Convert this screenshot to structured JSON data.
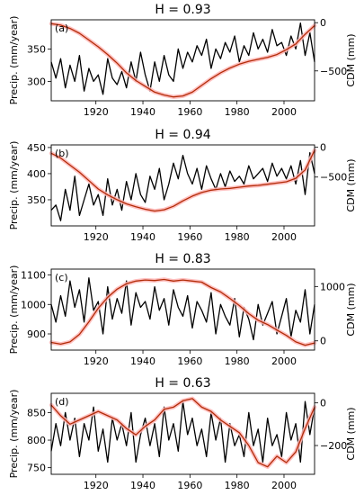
{
  "chart_data": [
    {
      "type": "line",
      "panel_label": "(a)",
      "title": "H = 0.93",
      "xlabel": "",
      "xlim": [
        1901,
        2013
      ],
      "xticks": [
        1920,
        1940,
        1960,
        1980,
        2000
      ],
      "ylabel_left": "Precip. (mm/year)",
      "ylim_left": [
        270,
        395
      ],
      "yticks_left": [
        300,
        350
      ],
      "ylabel_right": "CDM (mm)",
      "ylim_right": [
        -810,
        30
      ],
      "yticks_right": [
        -500,
        0
      ],
      "series": [
        {
          "axis": "left",
          "color": "#000000",
          "x": [
            1901,
            1903,
            1905,
            1907,
            1909,
            1911,
            1913,
            1915,
            1917,
            1919,
            1921,
            1923,
            1925,
            1927,
            1929,
            1931,
            1933,
            1935,
            1937,
            1939,
            1941,
            1943,
            1945,
            1947,
            1949,
            1951,
            1953,
            1955,
            1957,
            1959,
            1961,
            1963,
            1965,
            1967,
            1969,
            1971,
            1973,
            1975,
            1977,
            1979,
            1981,
            1983,
            1985,
            1987,
            1989,
            1991,
            1993,
            1995,
            1997,
            1999,
            2001,
            2003,
            2005,
            2007,
            2009,
            2011,
            2013
          ],
          "y": [
            330,
            305,
            335,
            290,
            325,
            300,
            340,
            285,
            320,
            300,
            310,
            280,
            335,
            305,
            295,
            315,
            290,
            330,
            300,
            345,
            310,
            285,
            330,
            300,
            340,
            310,
            300,
            350,
            320,
            345,
            330,
            355,
            340,
            365,
            320,
            350,
            335,
            360,
            345,
            370,
            330,
            355,
            340,
            375,
            350,
            365,
            345,
            380,
            355,
            360,
            340,
            370,
            350,
            390,
            340,
            375,
            330
          ]
        },
        {
          "axis": "right",
          "color": "#b22c08",
          "x": [
            1901,
            1905,
            1909,
            1913,
            1917,
            1921,
            1925,
            1929,
            1933,
            1937,
            1941,
            1945,
            1949,
            1953,
            1957,
            1961,
            1965,
            1969,
            1973,
            1977,
            1981,
            1985,
            1989,
            1993,
            1997,
            2001,
            2005,
            2009,
            2013
          ],
          "y": [
            -10,
            -25,
            -60,
            -110,
            -180,
            -250,
            -330,
            -420,
            -520,
            -600,
            -660,
            -720,
            -750,
            -770,
            -760,
            -720,
            -650,
            -580,
            -520,
            -470,
            -430,
            -400,
            -380,
            -360,
            -330,
            -280,
            -220,
            -120,
            -30
          ]
        }
      ]
    },
    {
      "type": "line",
      "panel_label": "(b)",
      "title": "H = 0.94",
      "xlabel": "",
      "xlim": [
        1901,
        2013
      ],
      "xticks": [
        1920,
        1940,
        1960,
        1980,
        2000
      ],
      "ylabel_left": "Precip. (mm/year)",
      "ylim_left": [
        300,
        455
      ],
      "yticks_left": [
        350,
        400,
        450
      ],
      "ylabel_right": "CDM (mm)",
      "ylim_right": [
        -1320,
        40
      ],
      "yticks_right": [
        -500,
        0
      ],
      "series": [
        {
          "axis": "left",
          "color": "#000000",
          "x": [
            1901,
            1903,
            1905,
            1907,
            1909,
            1911,
            1913,
            1915,
            1917,
            1919,
            1921,
            1923,
            1925,
            1927,
            1929,
            1931,
            1933,
            1935,
            1937,
            1939,
            1941,
            1943,
            1945,
            1947,
            1949,
            1951,
            1953,
            1955,
            1957,
            1959,
            1961,
            1963,
            1965,
            1967,
            1969,
            1971,
            1973,
            1975,
            1977,
            1979,
            1981,
            1983,
            1985,
            1987,
            1989,
            1991,
            1993,
            1995,
            1997,
            1999,
            2001,
            2003,
            2005,
            2007,
            2009,
            2011,
            2013
          ],
          "y": [
            330,
            340,
            310,
            370,
            330,
            395,
            320,
            350,
            380,
            340,
            360,
            320,
            390,
            340,
            370,
            330,
            385,
            350,
            400,
            360,
            345,
            395,
            370,
            410,
            350,
            380,
            420,
            390,
            435,
            400,
            380,
            410,
            370,
            415,
            390,
            370,
            400,
            375,
            405,
            385,
            395,
            380,
            415,
            390,
            400,
            410,
            385,
            420,
            395,
            410,
            390,
            415,
            380,
            425,
            360,
            440,
            400
          ]
        },
        {
          "axis": "right",
          "color": "#b22c08",
          "x": [
            1901,
            1905,
            1909,
            1913,
            1917,
            1921,
            1925,
            1929,
            1933,
            1937,
            1941,
            1945,
            1949,
            1953,
            1957,
            1961,
            1965,
            1969,
            1973,
            1977,
            1981,
            1985,
            1989,
            1993,
            1997,
            2001,
            2005,
            2009,
            2013
          ],
          "y": [
            -100,
            -180,
            -300,
            -420,
            -560,
            -700,
            -800,
            -880,
            -950,
            -1000,
            -1040,
            -1070,
            -1050,
            -990,
            -900,
            -820,
            -760,
            -720,
            -700,
            -690,
            -670,
            -650,
            -640,
            -620,
            -600,
            -580,
            -520,
            -380,
            -50
          ]
        }
      ]
    },
    {
      "type": "line",
      "panel_label": "(c)",
      "title": "H = 0.83",
      "xlabel": "",
      "xlim": [
        1901,
        2013
      ],
      "xticks": [
        1920,
        1940,
        1960,
        1980,
        2000
      ],
      "ylabel_left": "Precip. (mm/year)",
      "ylim_left": [
        845,
        1120
      ],
      "yticks_left": [
        900,
        1000,
        1100
      ],
      "ylabel_right": "CDM (mm)",
      "ylim_right": [
        -170,
        1320
      ],
      "yticks_right": [
        0,
        1000
      ],
      "series": [
        {
          "axis": "left",
          "color": "#000000",
          "x": [
            1901,
            1903,
            1905,
            1907,
            1909,
            1911,
            1913,
            1915,
            1917,
            1919,
            1921,
            1923,
            1925,
            1927,
            1929,
            1931,
            1933,
            1935,
            1937,
            1939,
            1941,
            1943,
            1945,
            1947,
            1949,
            1951,
            1953,
            1955,
            1957,
            1959,
            1961,
            1963,
            1965,
            1967,
            1969,
            1971,
            1973,
            1975,
            1977,
            1979,
            1981,
            1983,
            1985,
            1987,
            1989,
            1991,
            1993,
            1995,
            1997,
            1999,
            2001,
            2003,
            2005,
            2007,
            2009,
            2011,
            2013
          ],
          "y": [
            1000,
            940,
            1030,
            960,
            1080,
            990,
            1050,
            940,
            1090,
            980,
            1010,
            900,
            1060,
            950,
            1020,
            970,
            1080,
            930,
            1040,
            990,
            1010,
            950,
            1060,
            980,
            1020,
            930,
            1050,
            990,
            960,
            1030,
            920,
            1010,
            980,
            940,
            1040,
            900,
            1000,
            960,
            930,
            1020,
            890,
            990,
            950,
            880,
            1000,
            930,
            970,
            1010,
            900,
            960,
            1020,
            890,
            980,
            940,
            1050,
            900,
            1000
          ]
        },
        {
          "axis": "right",
          "color": "#b22c08",
          "x": [
            1901,
            1905,
            1909,
            1913,
            1917,
            1921,
            1925,
            1929,
            1933,
            1937,
            1941,
            1945,
            1949,
            1953,
            1957,
            1961,
            1965,
            1969,
            1973,
            1977,
            1981,
            1985,
            1989,
            1993,
            1997,
            2001,
            2005,
            2009,
            2013
          ],
          "y": [
            -30,
            -60,
            -20,
            120,
            350,
            600,
            800,
            950,
            1050,
            1100,
            1120,
            1110,
            1130,
            1100,
            1120,
            1100,
            1080,
            980,
            900,
            780,
            650,
            500,
            380,
            300,
            200,
            100,
            -20,
            -80,
            -40
          ]
        }
      ]
    },
    {
      "type": "line",
      "panel_label": "(d)",
      "title": "H = 0.63",
      "xlabel": "",
      "xlim": [
        1901,
        2013
      ],
      "xticks": [
        1920,
        1940,
        1960,
        1980,
        2000
      ],
      "ylabel_left": "Precip. (mm/year)",
      "ylim_left": [
        738,
        885
      ],
      "yticks_left": [
        750,
        800,
        850
      ],
      "ylabel_right": "CDM (mm)",
      "ylim_right": [
        -335,
        45
      ],
      "yticks_right": [
        -200,
        0
      ],
      "series": [
        {
          "axis": "left",
          "color": "#000000",
          "x": [
            1901,
            1903,
            1905,
            1907,
            1909,
            1911,
            1913,
            1915,
            1917,
            1919,
            1921,
            1923,
            1925,
            1927,
            1929,
            1931,
            1933,
            1935,
            1937,
            1939,
            1941,
            1943,
            1945,
            1947,
            1949,
            1951,
            1953,
            1955,
            1957,
            1959,
            1961,
            1963,
            1965,
            1967,
            1969,
            1971,
            1973,
            1975,
            1977,
            1979,
            1981,
            1983,
            1985,
            1987,
            1989,
            1991,
            1993,
            1995,
            1997,
            1999,
            2001,
            2003,
            2005,
            2007,
            2009,
            2011,
            2013
          ],
          "y": [
            780,
            830,
            790,
            850,
            800,
            840,
            770,
            830,
            800,
            860,
            780,
            820,
            760,
            840,
            800,
            830,
            790,
            850,
            760,
            810,
            840,
            790,
            830,
            770,
            860,
            800,
            830,
            780,
            870,
            810,
            840,
            790,
            820,
            770,
            850,
            800,
            840,
            760,
            830,
            790,
            810,
            770,
            850,
            790,
            820,
            760,
            840,
            790,
            810,
            770,
            850,
            800,
            830,
            760,
            870,
            810,
            860
          ]
        },
        {
          "axis": "right",
          "color": "#b22c08",
          "x": [
            1901,
            1905,
            1909,
            1913,
            1917,
            1921,
            1925,
            1929,
            1933,
            1937,
            1941,
            1945,
            1949,
            1953,
            1957,
            1961,
            1965,
            1969,
            1973,
            1977,
            1981,
            1985,
            1989,
            1993,
            1997,
            2001,
            2005,
            2009,
            2013
          ],
          "y": [
            -10,
            -60,
            -100,
            -80,
            -60,
            -40,
            -60,
            -80,
            -120,
            -150,
            -110,
            -80,
            -30,
            -20,
            10,
            20,
            -20,
            -40,
            -80,
            -110,
            -140,
            -200,
            -280,
            -300,
            -250,
            -280,
            -230,
            -120,
            -20
          ]
        }
      ]
    }
  ]
}
